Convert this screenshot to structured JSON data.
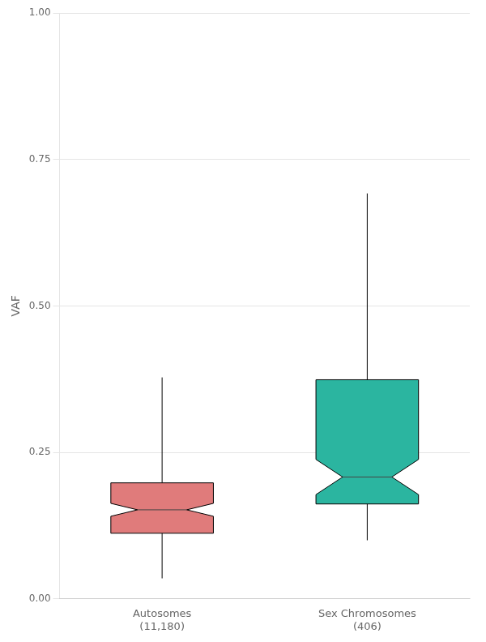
{
  "chart_data": {
    "type": "box",
    "categories": [
      "Autosomes\n(11,180)",
      "Sex Chromosomes\n(406)"
    ],
    "values": [
      {
        "whisker_low": 0.035,
        "q1": 0.112,
        "median": 0.152,
        "q3": 0.198,
        "whisker_high": 0.378,
        "notch_low": 0.141,
        "notch_high": 0.163
      },
      {
        "whisker_low": 0.1,
        "q1": 0.162,
        "median": 0.208,
        "q3": 0.374,
        "whisker_high": 0.692,
        "notch_low": 0.178,
        "notch_high": 0.238
      }
    ],
    "colors": [
      "#E07B7B",
      "#2BB5A0"
    ],
    "ylabel": "VAF",
    "ylim": [
      0.0,
      1.0
    ],
    "yticks": [
      {
        "value": 0.0,
        "label": "0.00"
      },
      0.25,
      {
        "value": 0.5,
        "label": "0.50"
      },
      0.75,
      {
        "value": 1.0,
        "label": "1.00"
      }
    ],
    "grid": "y"
  }
}
